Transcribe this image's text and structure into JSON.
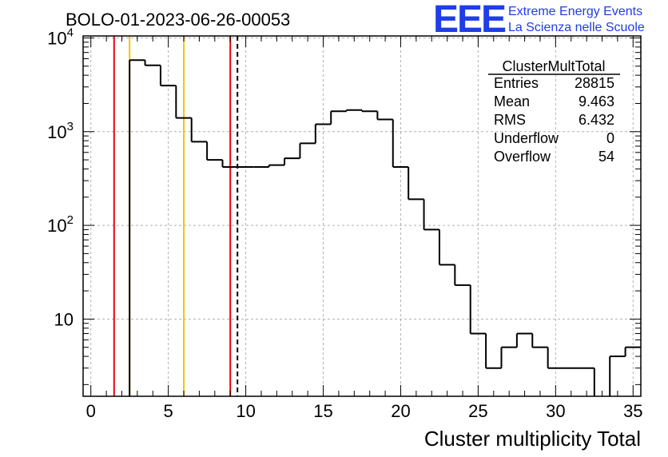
{
  "chart_data": {
    "type": "bar",
    "title": "BOLO-01-2023-06-26-00053",
    "xlabel": "Cluster multiplicity Total",
    "ylabel": "",
    "ylog": true,
    "xlim": [
      -0.5,
      35.5
    ],
    "ylim": [
      1.5,
      10500
    ],
    "grid": true,
    "x_ticks": [
      "0",
      "5",
      "10",
      "15",
      "20",
      "25",
      "30",
      "35"
    ],
    "x_tick_values": [
      0,
      5,
      10,
      15,
      20,
      25,
      30,
      35
    ],
    "y_ticks": [
      {
        "value": 10,
        "base": "10",
        "exp": ""
      },
      {
        "value": 100,
        "base": "10",
        "exp": "2"
      },
      {
        "value": 1000,
        "base": "10",
        "exp": "3"
      },
      {
        "value": 10000,
        "base": "10",
        "exp": "4"
      }
    ],
    "bin_edges_start": -0.5,
    "bin_width": 1,
    "values": [
      0,
      0,
      0,
      5800,
      5100,
      3100,
      1400,
      780,
      500,
      420,
      420,
      420,
      440,
      520,
      750,
      1200,
      1650,
      1700,
      1650,
      1350,
      420,
      190,
      90,
      38,
      23,
      7,
      3,
      5,
      7,
      5,
      3,
      3,
      3,
      0,
      4,
      5
    ],
    "vertical_lines": [
      {
        "x": 1.5,
        "color": "#e8000b",
        "style": "solid"
      },
      {
        "x": 2.5,
        "color": "#f5c400",
        "style": "solid"
      },
      {
        "x": 6.0,
        "color": "#f5c400",
        "style": "solid"
      },
      {
        "x": 9.0,
        "color": "#e8000b",
        "style": "solid"
      },
      {
        "x": 9.463,
        "color": "#000000",
        "style": "dashed"
      }
    ],
    "stats_box": {
      "name": "ClusterMultTotal",
      "rows": [
        {
          "label": "Entries",
          "value": "28815"
        },
        {
          "label": "Mean",
          "value": "9.463"
        },
        {
          "label": "RMS",
          "value": "6.432"
        },
        {
          "label": "Underflow",
          "value": "0"
        },
        {
          "label": "Overflow",
          "value": "54"
        }
      ]
    }
  },
  "logo": {
    "mark": "EEE",
    "line1": "Extreme Energy Events",
    "line2": "La Scienza nelle Scuole",
    "color": "#1f3de8"
  }
}
